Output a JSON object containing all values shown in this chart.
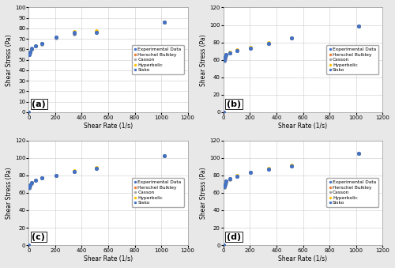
{
  "subplots": {
    "a": {
      "label": "(a)",
      "shear_rates": [
        0,
        5.11,
        10.2,
        20.4,
        51.1,
        102,
        204,
        341,
        511,
        1022
      ],
      "experimental": [
        0,
        55,
        57,
        61,
        63,
        66,
        72,
        76,
        76,
        86
      ],
      "herschel_bulkley": [
        0,
        56,
        57.5,
        60,
        63,
        65.5,
        71.5,
        75.5,
        76,
        86
      ],
      "casson": [
        0,
        55.5,
        57,
        60,
        63,
        65,
        71,
        75,
        76,
        86
      ],
      "hyperbolic": [
        0,
        55,
        57,
        60,
        63.5,
        66,
        72,
        77,
        77.5,
        86
      ],
      "sisko": [
        0,
        55,
        57,
        60,
        63,
        66,
        71.5,
        75.5,
        76,
        86
      ],
      "ylim": [
        0,
        100
      ],
      "yticks": [
        0,
        10,
        20,
        30,
        40,
        50,
        60,
        70,
        80,
        90,
        100
      ]
    },
    "b": {
      "label": "(b)",
      "shear_rates": [
        0,
        5.11,
        10.2,
        20.4,
        51.1,
        102,
        204,
        341,
        511,
        1022
      ],
      "experimental": [
        0,
        60,
        63,
        66,
        68,
        71,
        73,
        79,
        85,
        99
      ],
      "herschel_bulkley": [
        0,
        60,
        63,
        66,
        68,
        71,
        73,
        79,
        85,
        99
      ],
      "casson": [
        0,
        59,
        62,
        65,
        68,
        71,
        73,
        79,
        85,
        99
      ],
      "hyperbolic": [
        0,
        60,
        63,
        66,
        68.5,
        71.5,
        74,
        80,
        85.5,
        99
      ],
      "sisko": [
        0,
        60,
        63,
        66,
        68,
        71,
        73,
        79,
        85,
        99
      ],
      "ylim": [
        0,
        120
      ],
      "yticks": [
        0,
        20,
        40,
        60,
        80,
        100,
        120
      ]
    },
    "c": {
      "label": "(c)",
      "shear_rates": [
        0,
        5.11,
        10.2,
        20.4,
        51.1,
        102,
        204,
        341,
        511,
        1022
      ],
      "experimental": [
        0,
        66,
        69,
        72,
        74,
        77,
        80,
        84,
        88,
        102
      ],
      "herschel_bulkley": [
        0,
        66,
        69,
        72,
        74,
        77,
        80,
        84,
        88,
        102
      ],
      "casson": [
        0,
        65,
        68,
        71,
        74,
        77,
        80,
        84,
        88,
        102
      ],
      "hyperbolic": [
        0,
        66,
        69,
        72,
        74,
        77,
        80,
        85,
        89,
        102
      ],
      "sisko": [
        0,
        66,
        69,
        72,
        74,
        77,
        80,
        84,
        88,
        102
      ],
      "ylim": [
        0,
        120
      ],
      "yticks": [
        0,
        20,
        40,
        60,
        80,
        100,
        120
      ]
    },
    "d": {
      "label": "(d)",
      "shear_rates": [
        0,
        5.11,
        10.2,
        20.4,
        51.1,
        102,
        204,
        341,
        511,
        1022
      ],
      "experimental": [
        0,
        67,
        70,
        73,
        76,
        79,
        83,
        87,
        91,
        105
      ],
      "herschel_bulkley": [
        0,
        67,
        70,
        73,
        76,
        79,
        83,
        87,
        91,
        105
      ],
      "casson": [
        0,
        66,
        69,
        72,
        75,
        79,
        83,
        87,
        91,
        105
      ],
      "hyperbolic": [
        0,
        67,
        70,
        73,
        76.5,
        79.5,
        83.5,
        88,
        91.5,
        105
      ],
      "sisko": [
        0,
        67,
        70,
        73,
        76,
        79,
        83,
        87,
        91,
        105
      ],
      "ylim": [
        0,
        120
      ],
      "yticks": [
        0,
        20,
        40,
        60,
        80,
        100,
        120
      ]
    }
  },
  "colors": {
    "experimental": "#4472C4",
    "herschel_bulkley": "#ED7D31",
    "casson": "#A5A5A5",
    "hyperbolic": "#FFC000",
    "sisko": "#4472C4"
  },
  "legend_labels": [
    "Experimental Data",
    "Herschel Bulkley",
    "Casson",
    "Hyperbolic",
    "Sisko"
  ],
  "xlabel": "Shear Rate (1/s)",
  "ylabel": "Shear Stress (Pa)",
  "xlim": [
    0,
    1200
  ],
  "xticks": [
    0,
    200,
    400,
    600,
    800,
    1000,
    1200
  ],
  "fig_facecolor": "#E8E8E8",
  "ax_facecolor": "#FFFFFF"
}
